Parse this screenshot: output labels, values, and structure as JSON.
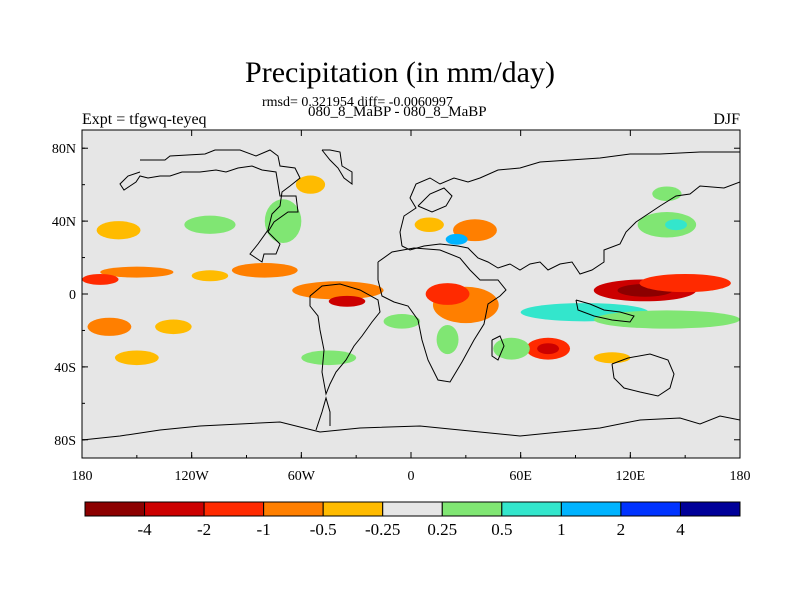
{
  "chart_data": {
    "type": "heatmap",
    "title": "Precipitation (in mm/day)",
    "stats_label": "rmsd= 0.321954 diff= -0.0060997",
    "rmsd": 0.321954,
    "diff": -0.0060997,
    "case_label": "080_8_MaBP - 080_8_MaBP",
    "experiment_label": "Expt = tfgwq-teyeq",
    "season": "DJF",
    "x_axis": {
      "range": [
        -180,
        180
      ],
      "ticks": [
        -180,
        -120,
        -60,
        0,
        60,
        120,
        180
      ],
      "tick_labels": [
        "180",
        "120W",
        "60W",
        "0",
        "60E",
        "120E",
        "180"
      ]
    },
    "y_axis": {
      "range": [
        -90,
        90
      ],
      "ticks": [
        80,
        40,
        0,
        -40,
        -80
      ],
      "tick_labels": [
        "80N",
        "40N",
        "0",
        "40S",
        "80S"
      ]
    },
    "colorbar": {
      "levels": [
        "-4",
        "-2",
        "-1",
        "-0.5",
        "-0.25",
        "0.25",
        "0.5",
        "1",
        "2",
        "4"
      ],
      "colors": [
        "#8c0000",
        "#cc0000",
        "#ff2a00",
        "#ff7f00",
        "#ffbb00",
        "#e6e6e6",
        "#80e673",
        "#33e6cc",
        "#00b3ff",
        "#0033ff",
        "#000099"
      ]
    },
    "anomaly_regions": [
      {
        "lon": 128,
        "lat": 2,
        "rlon": 28,
        "rlat": 6,
        "category": 1
      },
      {
        "lon": 128,
        "lat": 2,
        "rlon": 15,
        "rlat": 3.5,
        "category": 0
      },
      {
        "lon": 150,
        "lat": 6,
        "rlon": 25,
        "rlat": 5,
        "category": 2
      },
      {
        "lon": 95,
        "lat": -10,
        "rlon": 35,
        "rlat": 5,
        "category": 7
      },
      {
        "lon": 140,
        "lat": -14,
        "rlon": 40,
        "rlat": 5,
        "category": 6
      },
      {
        "lon": 30,
        "lat": -6,
        "rlon": 18,
        "rlat": 10,
        "category": 3
      },
      {
        "lon": 20,
        "lat": 0,
        "rlon": 12,
        "rlat": 6,
        "category": 2
      },
      {
        "lon": -40,
        "lat": 2,
        "rlon": 25,
        "rlat": 5,
        "category": 3
      },
      {
        "lon": -35,
        "lat": -4,
        "rlon": 10,
        "rlat": 3,
        "category": 1
      },
      {
        "lon": 75,
        "lat": -30,
        "rlon": 12,
        "rlat": 6,
        "category": 2
      },
      {
        "lon": 75,
        "lat": -30,
        "rlon": 6,
        "rlat": 3,
        "category": 1
      },
      {
        "lon": 55,
        "lat": -30,
        "rlon": 10,
        "rlat": 6,
        "category": 6
      },
      {
        "lon": 35,
        "lat": 35,
        "rlon": 12,
        "rlat": 6,
        "category": 3
      },
      {
        "lon": 10,
        "lat": 38,
        "rlon": 8,
        "rlat": 4,
        "category": 4
      },
      {
        "lon": 25,
        "lat": 30,
        "rlon": 6,
        "rlat": 3,
        "category": 8
      },
      {
        "lon": -80,
        "lat": 13,
        "rlon": 18,
        "rlat": 4,
        "category": 3
      },
      {
        "lon": -150,
        "lat": 12,
        "rlon": 20,
        "rlat": 3,
        "category": 3
      },
      {
        "lon": -170,
        "lat": 8,
        "rlon": 10,
        "rlat": 3,
        "category": 2
      },
      {
        "lon": -110,
        "lat": 38,
        "rlon": 14,
        "rlat": 5,
        "category": 6
      },
      {
        "lon": -160,
        "lat": 35,
        "rlon": 12,
        "rlat": 5,
        "category": 4
      },
      {
        "lon": -70,
        "lat": 40,
        "rlon": 10,
        "rlat": 12,
        "category": 6
      },
      {
        "lon": 140,
        "lat": 38,
        "rlon": 16,
        "rlat": 7,
        "category": 6
      },
      {
        "lon": 145,
        "lat": 38,
        "rlon": 6,
        "rlat": 3,
        "category": 7
      },
      {
        "lon": -55,
        "lat": 60,
        "rlon": 8,
        "rlat": 5,
        "category": 4
      },
      {
        "lon": -165,
        "lat": -18,
        "rlon": 12,
        "rlat": 5,
        "category": 3
      },
      {
        "lon": -130,
        "lat": -18,
        "rlon": 10,
        "rlat": 4,
        "category": 4
      },
      {
        "lon": -150,
        "lat": -35,
        "rlon": 12,
        "rlat": 4,
        "category": 4
      },
      {
        "lon": -45,
        "lat": -35,
        "rlon": 15,
        "rlat": 4,
        "category": 6
      },
      {
        "lon": 20,
        "lat": -25,
        "rlon": 6,
        "rlat": 8,
        "category": 6
      },
      {
        "lon": 110,
        "lat": -35,
        "rlon": 10,
        "rlat": 3,
        "category": 4
      },
      {
        "lon": -5,
        "lat": -15,
        "rlon": 10,
        "rlat": 4,
        "category": 6
      },
      {
        "lon": -110,
        "lat": 10,
        "rlon": 10,
        "rlat": 3,
        "category": 4
      },
      {
        "lon": 140,
        "lat": 55,
        "rlon": 8,
        "rlat": 4,
        "category": 6
      }
    ]
  }
}
